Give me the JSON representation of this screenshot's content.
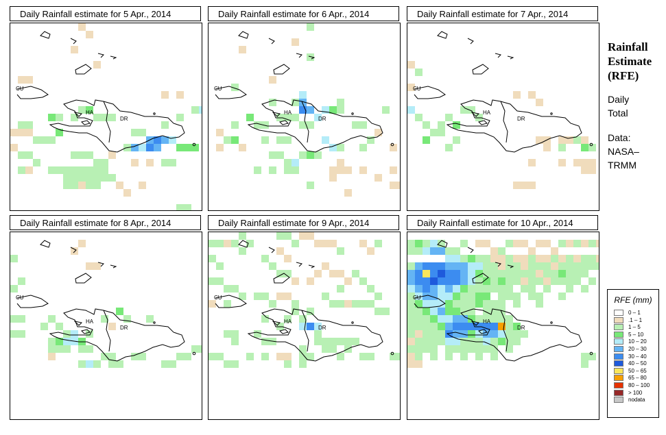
{
  "panels": [
    {
      "title": "Daily Rainfall estimate for  5 Apr., 2014",
      "day": 5
    },
    {
      "title": "Daily Rainfall estimate for  6 Apr., 2014",
      "day": 6
    },
    {
      "title": "Daily Rainfall estimate for  7 Apr., 2014",
      "day": 7
    },
    {
      "title": "Daily Rainfall estimate for  8 Apr., 2014",
      "day": 8
    },
    {
      "title": "Daily Rainfall estimate for  9 Apr., 2014",
      "day": 9
    },
    {
      "title": "Daily Rainfall estimate for  10 Apr., 2014",
      "day": 10
    }
  ],
  "map_labels": {
    "cuba": "CU",
    "haiti": "HA",
    "dominican_republic": "DR"
  },
  "sidebar": {
    "title_lines": [
      "Rainfall",
      "Estimate",
      "(RFE)"
    ],
    "period_lines": [
      "Daily",
      "Total"
    ],
    "source_lines": [
      "Data:",
      "NASA–",
      "TRMM"
    ]
  },
  "legend": {
    "title": "RFE (mm)",
    "items": [
      {
        "label": "0 – 1",
        "color": "#ffffff"
      },
      {
        "label": ".1 – 1",
        "color": "#f0dcbc"
      },
      {
        "label": "1 – 5",
        "color": "#b8f0b4"
      },
      {
        "label": "5 – 10",
        "color": "#78e878"
      },
      {
        "label": "10 – 20",
        "color": "#b4ecf8"
      },
      {
        "label": "20 – 30",
        "color": "#64b4f4"
      },
      {
        "label": "30 – 40",
        "color": "#3c8cf0"
      },
      {
        "label": "40 – 50",
        "color": "#1e5adc"
      },
      {
        "label": "50 – 65",
        "color": "#fae65a"
      },
      {
        "label": "65 – 80",
        "color": "#f8a000"
      },
      {
        "label": "80 – 100",
        "color": "#e63200"
      },
      {
        "label": "> 100",
        "color": "#962828"
      },
      {
        "label": "nodata",
        "color": "#c8c8c8"
      }
    ]
  }
}
